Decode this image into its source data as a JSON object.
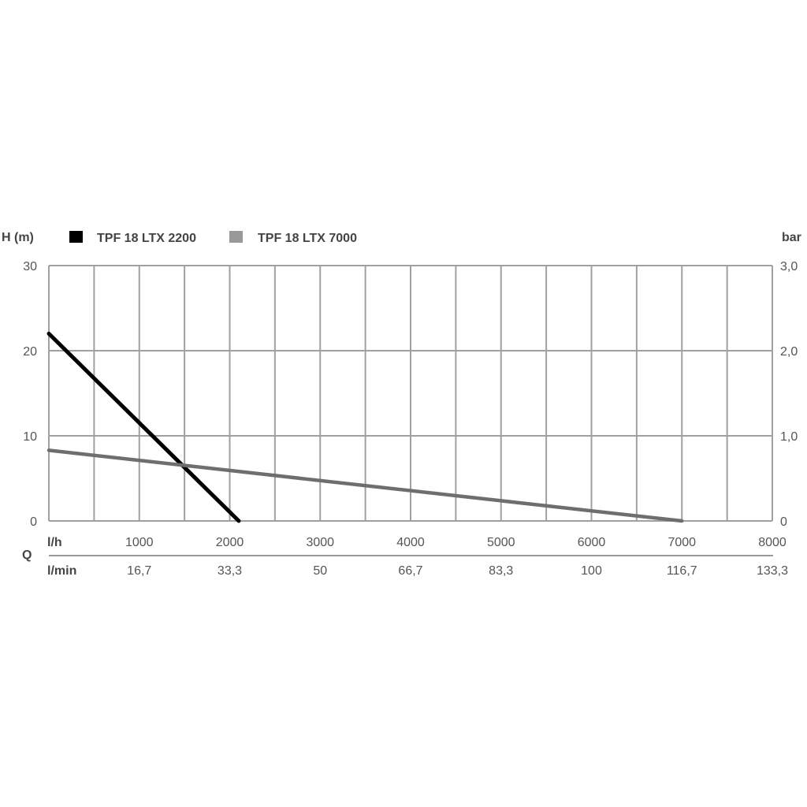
{
  "chart_data": {
    "type": "line",
    "title": "",
    "ylabel_left": "H (m)",
    "ylabel_right": "bar",
    "xlabel": "Q",
    "x_unit_top": "l/h",
    "x_unit_bottom": "l/min",
    "xlim": [
      0,
      8000
    ],
    "ylim": [
      0,
      30
    ],
    "ylim_right": [
      0,
      3.0
    ],
    "grid": true,
    "legend_placement": "top-left",
    "x_ticks": [
      0,
      500,
      1000,
      1500,
      2000,
      2500,
      3000,
      3500,
      4000,
      4500,
      5000,
      5500,
      6000,
      6500,
      7000,
      7500,
      8000
    ],
    "x_tick_labels_lh": [
      {
        "value": 1000,
        "label": "1000"
      },
      {
        "value": 2000,
        "label": "2000"
      },
      {
        "value": 3000,
        "label": "3000"
      },
      {
        "value": 4000,
        "label": "4000"
      },
      {
        "value": 5000,
        "label": "5000"
      },
      {
        "value": 6000,
        "label": "6000"
      },
      {
        "value": 7000,
        "label": "7000"
      },
      {
        "value": 8000,
        "label": "8000"
      }
    ],
    "x_tick_labels_lmin": [
      {
        "value": 1000,
        "label": "16,7"
      },
      {
        "value": 2000,
        "label": "33,3"
      },
      {
        "value": 3000,
        "label": "50"
      },
      {
        "value": 4000,
        "label": "66,7"
      },
      {
        "value": 5000,
        "label": "83,3"
      },
      {
        "value": 6000,
        "label": "100"
      },
      {
        "value": 7000,
        "label": "116,7"
      },
      {
        "value": 8000,
        "label": "133,3"
      }
    ],
    "y_ticks_left": [
      {
        "value": 0,
        "label": "0"
      },
      {
        "value": 10,
        "label": "10"
      },
      {
        "value": 20,
        "label": "20"
      },
      {
        "value": 30,
        "label": "30"
      }
    ],
    "y_ticks_right": [
      {
        "value": 0,
        "label": "0"
      },
      {
        "value": 10,
        "label": "1,0"
      },
      {
        "value": 20,
        "label": "2,0"
      },
      {
        "value": 30,
        "label": "3,0"
      }
    ],
    "series": [
      {
        "name": "TPF 18 LTX 2200",
        "color": "#000000",
        "x": [
          0,
          2100
        ],
        "y": [
          22,
          0
        ]
      },
      {
        "name": "TPF 18 LTX 7000",
        "color": "#6e6e6e",
        "legend_color": "#999999",
        "x": [
          0,
          7000
        ],
        "y": [
          8.3,
          0
        ]
      }
    ],
    "colors": {
      "grid": "#a0a0a0",
      "text": "#555555",
      "label": "#444444"
    }
  }
}
